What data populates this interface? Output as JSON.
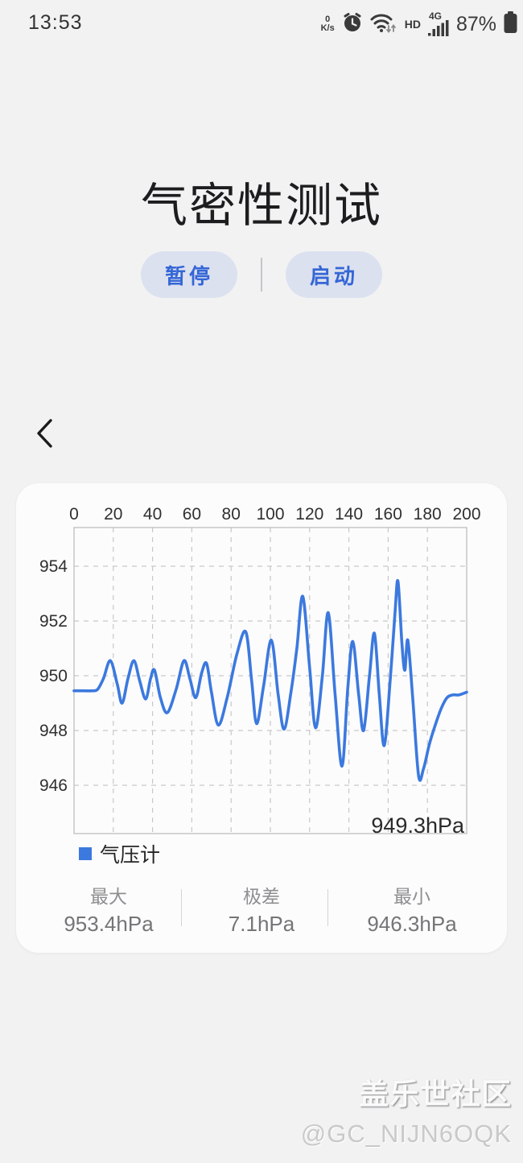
{
  "status_bar": {
    "time": "13:53",
    "net_speed_value": "0",
    "net_speed_unit": "K/s",
    "hd_label": "HD",
    "network_label": "4G",
    "battery_percent": "87%"
  },
  "header": {
    "title": "气密性测试",
    "pause_label": "暂停",
    "start_label": "启动"
  },
  "chart_data": {
    "type": "line",
    "x_axis_position": "top",
    "x_range": [
      0,
      200
    ],
    "x_ticks": [
      0,
      20,
      40,
      60,
      80,
      100,
      120,
      140,
      160,
      180,
      200
    ],
    "y_ticks": [
      954,
      952,
      950,
      948,
      946
    ],
    "ylim": [
      944.2,
      955.4
    ],
    "grid": "dashed",
    "current_value": "949.3hPa",
    "legend": {
      "label": "气压计",
      "color": "#3c79de"
    },
    "series": [
      {
        "name": "气压计",
        "color": "#3c79de",
        "points": [
          [
            0,
            949.45
          ],
          [
            5,
            949.45
          ],
          [
            9,
            949.45
          ],
          [
            12,
            949.5
          ],
          [
            15,
            949.9
          ],
          [
            18.5,
            950.55
          ],
          [
            22,
            949.7
          ],
          [
            24.5,
            949.0
          ],
          [
            27.5,
            949.9
          ],
          [
            30.5,
            950.55
          ],
          [
            33.5,
            949.8
          ],
          [
            36.5,
            949.15
          ],
          [
            39,
            949.9
          ],
          [
            41,
            950.2
          ],
          [
            44,
            949.2
          ],
          [
            47.5,
            948.65
          ],
          [
            52,
            949.5
          ],
          [
            56,
            950.55
          ],
          [
            59,
            949.9
          ],
          [
            62,
            949.2
          ],
          [
            65,
            950.1
          ],
          [
            67.5,
            950.45
          ],
          [
            70,
            949.4
          ],
          [
            73.5,
            948.2
          ],
          [
            78,
            949.2
          ],
          [
            83,
            950.8
          ],
          [
            87.5,
            951.6
          ],
          [
            90.5,
            949.8
          ],
          [
            93,
            948.25
          ],
          [
            96.5,
            949.6
          ],
          [
            100.5,
            951.3
          ],
          [
            104,
            949.3
          ],
          [
            107,
            948.05
          ],
          [
            110.5,
            949.4
          ],
          [
            113.5,
            951.0
          ],
          [
            116.5,
            952.9
          ],
          [
            120,
            950.3
          ],
          [
            123,
            948.1
          ],
          [
            126.5,
            950.0
          ],
          [
            129.5,
            952.3
          ],
          [
            133,
            949.3
          ],
          [
            136.5,
            946.7
          ],
          [
            139.5,
            949.6
          ],
          [
            142,
            951.25
          ],
          [
            145,
            949.3
          ],
          [
            147.5,
            948.0
          ],
          [
            150.5,
            950.0
          ],
          [
            153,
            951.55
          ],
          [
            155.5,
            949.3
          ],
          [
            158,
            947.45
          ],
          [
            161,
            949.8
          ],
          [
            163.5,
            952.3
          ],
          [
            165,
            953.45
          ],
          [
            167,
            951.2
          ],
          [
            168.5,
            950.2
          ],
          [
            170,
            951.3
          ],
          [
            172.5,
            949.2
          ],
          [
            175.5,
            946.35
          ],
          [
            178,
            946.6
          ],
          [
            181,
            947.5
          ],
          [
            184,
            948.2
          ],
          [
            187,
            948.8
          ],
          [
            190,
            949.2
          ],
          [
            193,
            949.3
          ],
          [
            196,
            949.3
          ],
          [
            200,
            949.4
          ]
        ]
      }
    ],
    "stats": [
      {
        "label": "最大",
        "value": "953.4hPa"
      },
      {
        "label": "极差",
        "value": "7.1hPa"
      },
      {
        "label": "最小",
        "value": "946.3hPa"
      }
    ]
  },
  "watermark": {
    "line1": "盖乐世社区",
    "line2": "@GC_NIJN6OQK"
  },
  "colors": {
    "accent_blue": "#3c79de",
    "button_bg": "#dbe1ef",
    "button_text": "#3566d6",
    "page_bg": "#f2f2f3",
    "card_bg": "#fcfcfd",
    "grid_dash": "#c8c8c8",
    "plot_border": "#b9b9b9"
  }
}
